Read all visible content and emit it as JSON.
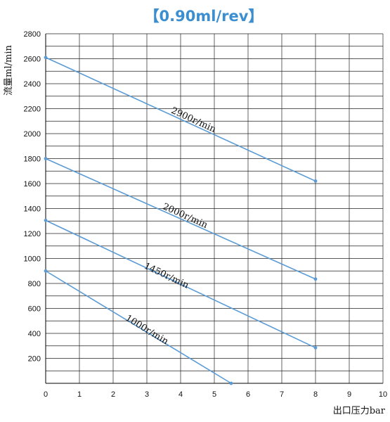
{
  "chart_data": {
    "type": "line",
    "title": "【0.90ml/rev】",
    "title_color": "#3b8fd0",
    "line_color": "#5b9bd5",
    "xlabel": "出口压力bar",
    "ylabel": "流量ml/min",
    "xlim": [
      0,
      10
    ],
    "ylim": [
      0,
      2800
    ],
    "x_ticks": [
      0,
      1,
      2,
      3,
      4,
      5,
      6,
      7,
      8,
      9,
      10
    ],
    "y_tick_labels": [
      200,
      400,
      600,
      800,
      1000,
      1200,
      1400,
      1600,
      1800,
      2000,
      2200,
      2400,
      2600,
      2800
    ],
    "grid": true,
    "series": [
      {
        "name": "2900r/min",
        "x": [
          0,
          8
        ],
        "y": [
          2610,
          1620
        ],
        "label_at": {
          "x": 3.7,
          "y": 2170
        }
      },
      {
        "name": "2000r/min",
        "x": [
          0,
          8
        ],
        "y": [
          1800,
          835
        ],
        "label_at": {
          "x": 3.45,
          "y": 1400
        }
      },
      {
        "name": "1450r/min",
        "x": [
          0,
          8
        ],
        "y": [
          1305,
          285
        ],
        "label_at": {
          "x": 2.9,
          "y": 925
        }
      },
      {
        "name": "1000r/min",
        "x": [
          0,
          5.5
        ],
        "y": [
          900,
          0
        ],
        "label_at": {
          "x": 2.35,
          "y": 510
        }
      }
    ]
  }
}
